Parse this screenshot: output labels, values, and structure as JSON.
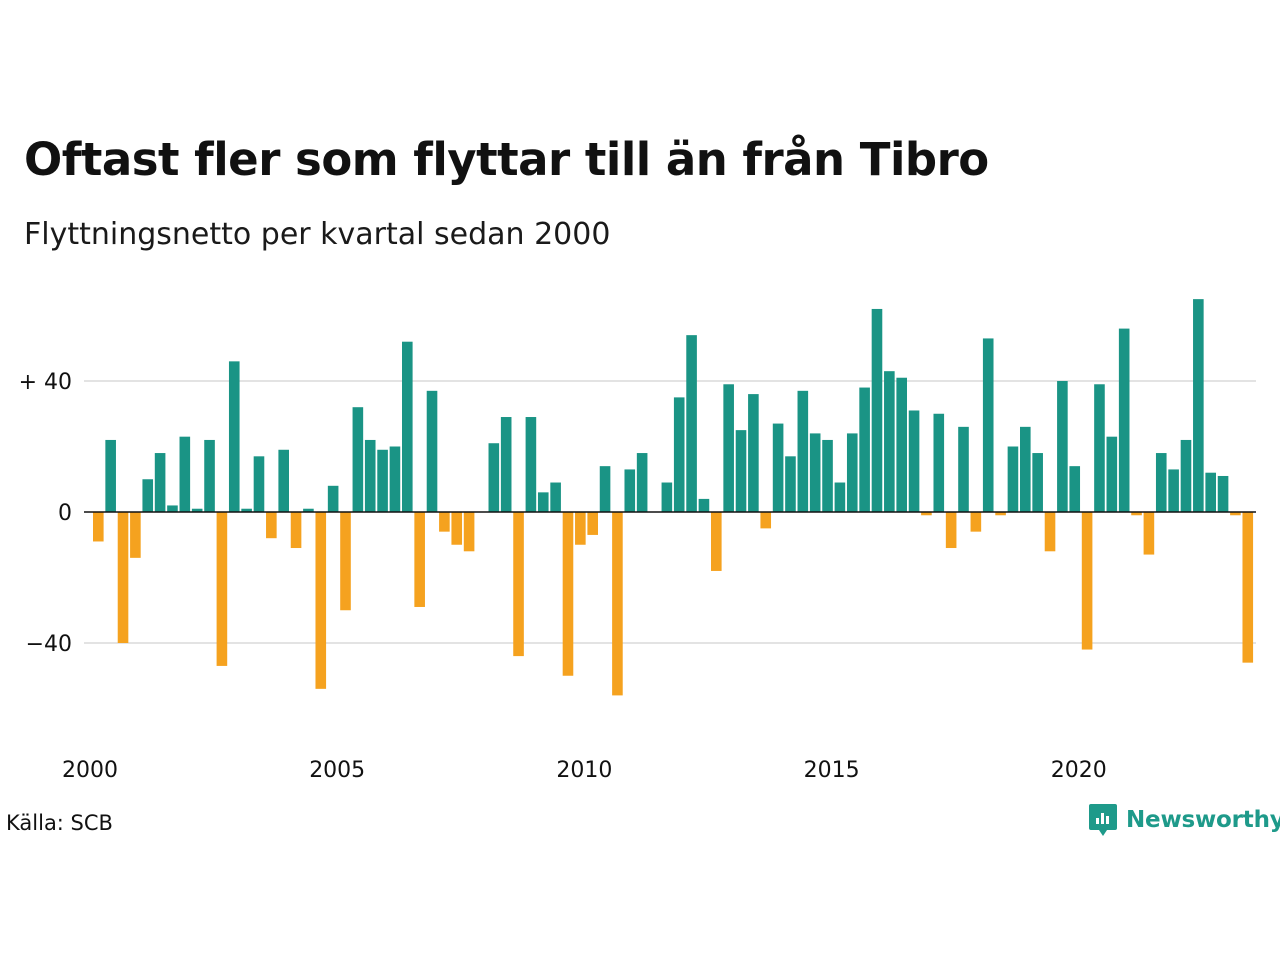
{
  "title": "Oftast fler som flyttar till än från Tibro",
  "subtitle": "Flyttningsnetto per kvartal sedan 2000",
  "source": "Källa: SCB",
  "brand": {
    "name": "Newsworthy",
    "icon": "newsworthy-logo-icon"
  },
  "colors": {
    "positive": "#1a9485",
    "negative": "#f5a21f",
    "grid": "#e3e3e3",
    "zero": "#111111"
  },
  "chart_data": {
    "type": "bar",
    "xlabel": "",
    "ylabel": "",
    "ylim": [
      -70,
      66
    ],
    "yticks": [
      {
        "value": 40,
        "label": "+ 40"
      },
      {
        "value": 0,
        "label": "0"
      },
      {
        "value": -40,
        "label": "−40"
      }
    ],
    "xticks": [
      "2000",
      "2005",
      "2010",
      "2015",
      "2020"
    ],
    "grid": true,
    "start": {
      "year": 2000,
      "quarter": 1
    },
    "values": [
      -9,
      22,
      -40,
      -14,
      10,
      18,
      2,
      23,
      1,
      22,
      -47,
      46,
      1,
      17,
      -8,
      19,
      -11,
      1,
      -54,
      8,
      -30,
      32,
      22,
      19,
      20,
      52,
      -29,
      37,
      -6,
      -10,
      -12,
      0,
      21,
      29,
      -44,
      29,
      6,
      9,
      -50,
      -10,
      -7,
      14,
      -56,
      13,
      18,
      0,
      9,
      35,
      54,
      4,
      -18,
      39,
      25,
      36,
      -5,
      27,
      17,
      37,
      24,
      22,
      9,
      24,
      38,
      62,
      43,
      41,
      31,
      -1,
      30,
      -11,
      26,
      -6,
      53,
      -1,
      20,
      26,
      18,
      -12,
      40,
      14,
      -42,
      39,
      23,
      56,
      -1,
      -13,
      18,
      13,
      22,
      65,
      12,
      11,
      -1,
      -46
    ]
  }
}
